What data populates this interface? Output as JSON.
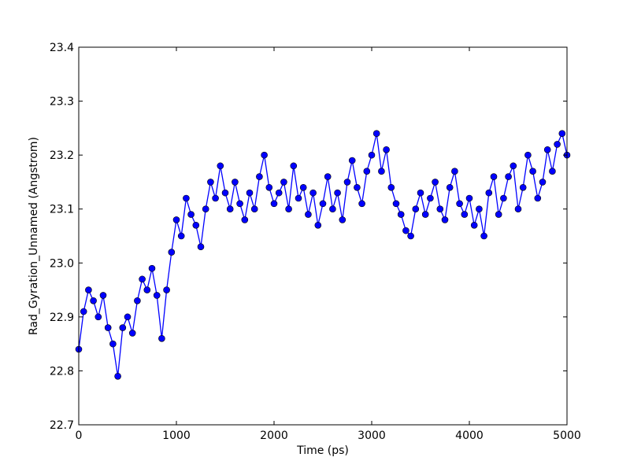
{
  "chart_data": {
    "type": "line",
    "title": "",
    "xlabel": "Time (ps)",
    "ylabel": "Rad_Gyration_Unnamed (Angstrom)",
    "xlim": [
      0,
      5000
    ],
    "ylim": [
      22.7,
      23.4
    ],
    "xticks": [
      0,
      1000,
      2000,
      3000,
      4000,
      5000
    ],
    "xtick_labels": [
      "0",
      "1000",
      "2000",
      "3000",
      "4000",
      "5000"
    ],
    "yticks": [
      22.7,
      22.8,
      22.9,
      23.0,
      23.1,
      23.2,
      23.3,
      23.4
    ],
    "ytick_labels": [
      "22.7",
      "22.8",
      "22.9",
      "23.0",
      "23.1",
      "23.2",
      "23.3",
      "23.4"
    ],
    "grid": false,
    "legend": "none",
    "colors": {
      "line": "#0000ff",
      "marker_fill": "#0000ff",
      "marker_edge": "#000000"
    },
    "marker": "circle",
    "series": [
      {
        "x": [
          0,
          50,
          100,
          150,
          200,
          250,
          300,
          350,
          400,
          450,
          500,
          550,
          600,
          650,
          700,
          750,
          800,
          850,
          900,
          950,
          1000,
          1050,
          1100,
          1150,
          1200,
          1250,
          1300,
          1350,
          1400,
          1450,
          1500,
          1550,
          1600,
          1650,
          1700,
          1750,
          1800,
          1850,
          1900,
          1950,
          2000,
          2050,
          2100,
          2150,
          2200,
          2250,
          2300,
          2350,
          2400,
          2450,
          2500,
          2550,
          2600,
          2650,
          2700,
          2750,
          2800,
          2850,
          2900,
          2950,
          3000,
          3050,
          3100,
          3150,
          3200,
          3250,
          3300,
          3350,
          3400,
          3450,
          3500,
          3550,
          3600,
          3650,
          3700,
          3750,
          3800,
          3850,
          3900,
          3950,
          4000,
          4050,
          4100,
          4150,
          4200,
          4250,
          4300,
          4350,
          4400,
          4450,
          4500,
          4550,
          4600,
          4650,
          4700,
          4750,
          4800,
          4850,
          4900,
          4950,
          5000
        ],
        "values": [
          22.84,
          22.91,
          22.95,
          22.93,
          22.9,
          22.94,
          22.88,
          22.85,
          22.79,
          22.88,
          22.9,
          22.87,
          22.93,
          22.97,
          22.95,
          22.99,
          22.94,
          22.86,
          22.95,
          23.02,
          23.08,
          23.05,
          23.12,
          23.09,
          23.07,
          23.03,
          23.1,
          23.15,
          23.12,
          23.18,
          23.13,
          23.1,
          23.15,
          23.11,
          23.08,
          23.13,
          23.1,
          23.16,
          23.2,
          23.14,
          23.11,
          23.13,
          23.15,
          23.1,
          23.18,
          23.12,
          23.14,
          23.09,
          23.13,
          23.07,
          23.11,
          23.16,
          23.1,
          23.13,
          23.08,
          23.15,
          23.19,
          23.14,
          23.11,
          23.17,
          23.2,
          23.24,
          23.17,
          23.21,
          23.14,
          23.11,
          23.09,
          23.06,
          23.05,
          23.1,
          23.13,
          23.09,
          23.12,
          23.15,
          23.1,
          23.08,
          23.14,
          23.17,
          23.11,
          23.09,
          23.12,
          23.07,
          23.1,
          23.05,
          23.13,
          23.16,
          23.09,
          23.12,
          23.16,
          23.18,
          23.1,
          23.14,
          23.2,
          23.17,
          23.12,
          23.15,
          23.21,
          23.17,
          23.22,
          23.24,
          23.2
        ]
      }
    ]
  }
}
